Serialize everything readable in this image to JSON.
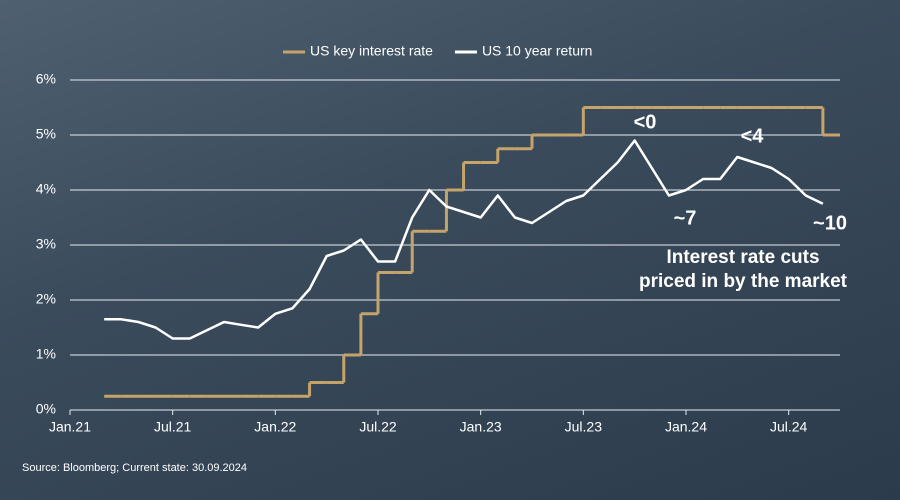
{
  "chart_data": {
    "type": "line",
    "x": [
      "2021-03",
      "2021-04",
      "2021-05",
      "2021-06",
      "2021-07",
      "2021-08",
      "2021-09",
      "2021-10",
      "2021-11",
      "2021-12",
      "2022-01",
      "2022-02",
      "2022-03",
      "2022-04",
      "2022-05",
      "2022-06",
      "2022-07",
      "2022-08",
      "2022-09",
      "2022-10",
      "2022-11",
      "2022-12",
      "2023-01",
      "2023-02",
      "2023-03",
      "2023-04",
      "2023-05",
      "2023-06",
      "2023-07",
      "2023-08",
      "2023-09",
      "2023-10",
      "2023-11",
      "2023-12",
      "2024-01",
      "2024-02",
      "2024-03",
      "2024-04",
      "2024-05",
      "2024-06",
      "2024-07",
      "2024-08",
      "2024-09"
    ],
    "series": [
      {
        "name": "US key interest rate",
        "color": "#c4a46a",
        "step": true,
        "values": [
          0.25,
          0.25,
          0.25,
          0.25,
          0.25,
          0.25,
          0.25,
          0.25,
          0.25,
          0.25,
          0.25,
          0.25,
          0.5,
          0.5,
          1.0,
          1.75,
          2.5,
          2.5,
          3.25,
          3.25,
          4.0,
          4.5,
          4.5,
          4.75,
          4.75,
          5.0,
          5.0,
          5.0,
          5.5,
          5.5,
          5.5,
          5.5,
          5.5,
          5.5,
          5.5,
          5.5,
          5.5,
          5.5,
          5.5,
          5.5,
          5.5,
          5.5,
          5.0
        ]
      },
      {
        "name": "US 10 year return",
        "color": "#ffffff",
        "values": [
          1.65,
          1.65,
          1.6,
          1.5,
          1.3,
          1.3,
          1.45,
          1.6,
          1.55,
          1.5,
          1.75,
          1.85,
          2.2,
          2.8,
          2.9,
          3.1,
          2.7,
          2.7,
          3.5,
          4.0,
          3.7,
          3.6,
          3.5,
          3.9,
          3.5,
          3.4,
          3.6,
          3.8,
          3.9,
          4.2,
          4.5,
          4.9,
          4.4,
          3.9,
          4.0,
          4.2,
          4.2,
          4.6,
          4.5,
          4.4,
          4.2,
          3.9,
          3.75
        ]
      }
    ],
    "xlim": [
      "2021-01",
      "2024-10"
    ],
    "xticks": [
      {
        "value": "2021-01",
        "label": "Jan.21"
      },
      {
        "value": "2021-07",
        "label": "Jul.21"
      },
      {
        "value": "2022-01",
        "label": "Jan.22"
      },
      {
        "value": "2022-07",
        "label": "Jul.22"
      },
      {
        "value": "2023-01",
        "label": "Jan.23"
      },
      {
        "value": "2023-07",
        "label": "Jul.23"
      },
      {
        "value": "2024-01",
        "label": "Jan.24"
      },
      {
        "value": "2024-07",
        "label": "Jul.24"
      }
    ],
    "ylim": [
      0,
      6
    ],
    "yticks": [
      {
        "value": 0,
        "label": "0%"
      },
      {
        "value": 1,
        "label": "1%"
      },
      {
        "value": 2,
        "label": "2%"
      },
      {
        "value": 3,
        "label": "3%"
      },
      {
        "value": 4,
        "label": "4%"
      },
      {
        "value": 5,
        "label": "5%"
      },
      {
        "value": 6,
        "label": "6%"
      }
    ],
    "grid": true,
    "legend": "top",
    "annotations": [
      "<0",
      "<4",
      "~7",
      "~10",
      "Interest rate cuts",
      "priced in by the market"
    ],
    "source": "Source: Bloomberg; Current state: 30.09.2024"
  }
}
